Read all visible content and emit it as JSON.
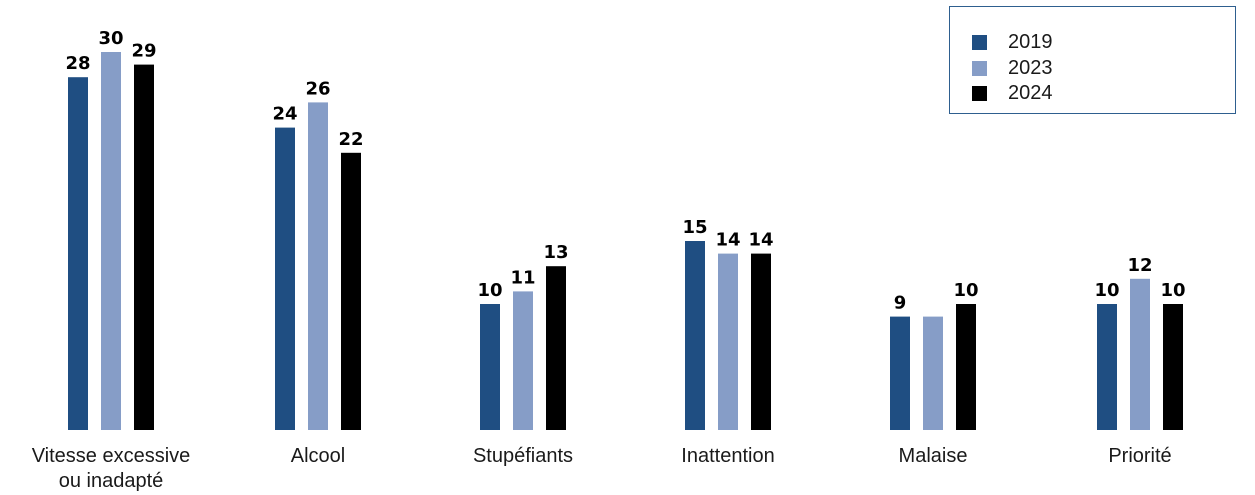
{
  "chart_data": {
    "type": "bar",
    "categories": [
      [
        "Vitesse excessive",
        "ou inadapté"
      ],
      [
        "Alcool"
      ],
      [
        "Stupéfiants"
      ],
      [
        "Inattention"
      ],
      [
        "Malaise"
      ],
      [
        "Priorité"
      ]
    ],
    "series": [
      {
        "name": "2019",
        "color": "#1f4e82",
        "values": [
          28,
          24,
          10,
          15,
          9,
          10
        ]
      },
      {
        "name": "2023",
        "color": "#869dc7",
        "values": [
          30,
          26,
          11,
          14,
          9,
          12
        ]
      },
      {
        "name": "2024",
        "color": "#000000",
        "values": [
          29,
          22,
          13,
          14,
          10,
          10
        ]
      }
    ],
    "value_labels": [
      [
        "28",
        "24",
        "10",
        "15",
        "9",
        "10"
      ],
      [
        "30",
        "26",
        "11",
        "14",
        "",
        "12"
      ],
      [
        "29",
        "22",
        "13",
        "14",
        "10",
        "10"
      ]
    ],
    "legend_position": "top-right",
    "grid": false,
    "ylim": [
      0,
      30
    ]
  }
}
